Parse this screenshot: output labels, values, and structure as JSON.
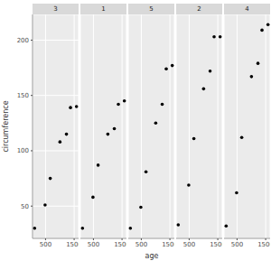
{
  "chart_data": {
    "type": "scatter",
    "x_label": "age",
    "y_label": "circumference",
    "x": [
      118,
      484,
      664,
      1004,
      1231,
      1372,
      1582
    ],
    "series": [
      {
        "name": "3",
        "color": "#000000",
        "values": [
          30,
          51,
          75,
          108,
          115,
          139,
          140
        ]
      },
      {
        "name": "1",
        "color": "#000000",
        "values": [
          30,
          58,
          87,
          115,
          120,
          142,
          145
        ]
      },
      {
        "name": "5",
        "color": "#000000",
        "values": [
          30,
          49,
          81,
          125,
          142,
          174,
          177
        ]
      },
      {
        "name": "2",
        "color": "#000000",
        "values": [
          33,
          69,
          111,
          156,
          172,
          203,
          203
        ]
      },
      {
        "name": "4",
        "color": "#000000",
        "values": [
          32,
          62,
          112,
          167,
          179,
          209,
          214
        ]
      }
    ],
    "xlim": [
      44.8,
      1655.2
    ],
    "ylim": [
      20.8,
      223.2
    ],
    "xticks": [
      500,
      1500
    ],
    "yticks": [
      50,
      100,
      150,
      200
    ],
    "grid": true
  }
}
